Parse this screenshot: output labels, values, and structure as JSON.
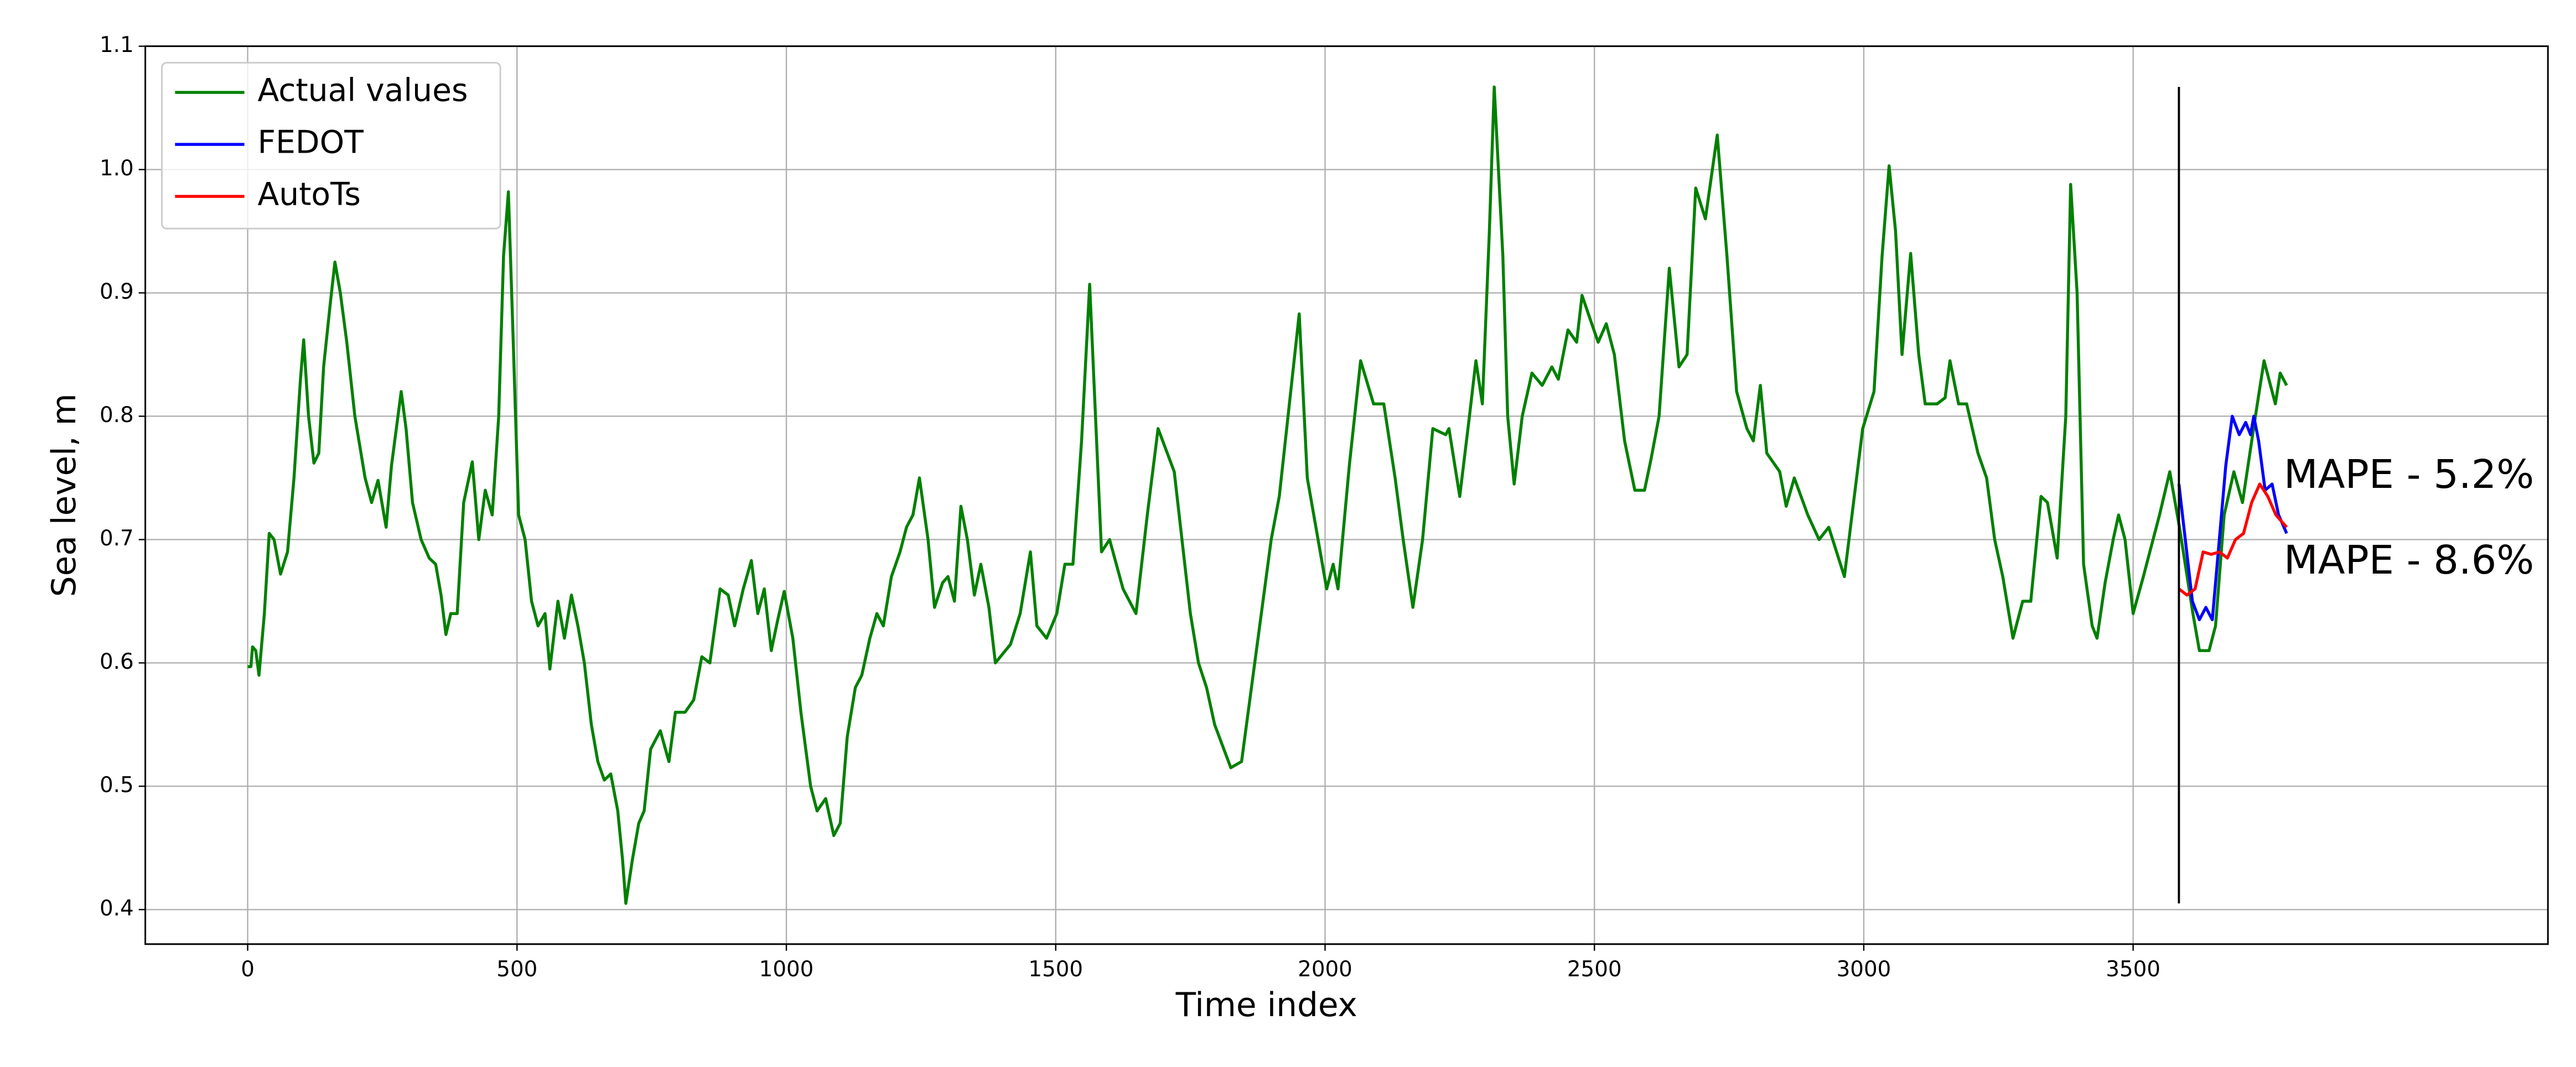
{
  "chart_data": {
    "type": "line",
    "xlabel": "Time index",
    "ylabel": "Sea level, m",
    "xlim": [
      -190,
      4270
    ],
    "ylim": [
      0.372,
      1.1
    ],
    "xticks": [
      0,
      500,
      1000,
      1500,
      2000,
      2500,
      3000,
      3500
    ],
    "yticks": [
      0.4,
      0.5,
      0.6,
      0.7,
      0.8,
      0.9,
      1.0,
      1.1
    ],
    "grid": true,
    "legend": "upper left",
    "vline": {
      "x": 3585,
      "ymin": 0.405,
      "ymax": 1.067,
      "color": "#000000"
    },
    "annotations": [
      {
        "text": "MAPE - 5.2%",
        "color": "#0000ff"
      },
      {
        "text": "MAPE - 8.6%",
        "color": "#ff0000"
      }
    ],
    "series": [
      {
        "name": "Actual values",
        "color": "#008000",
        "x": [
          0,
          6,
          9,
          15,
          21,
          31,
          40,
          49,
          61,
          74,
          86,
          98,
          104,
          113,
          123,
          132,
          141,
          153,
          162,
          172,
          184,
          199,
          218,
          230,
          242,
          257,
          267,
          279,
          285,
          294,
          306,
          322,
          337,
          349,
          359,
          368,
          377,
          389,
          401,
          417,
          429,
          441,
          454,
          466,
          475,
          484,
          493,
          503,
          515,
          527,
          539,
          552,
          561,
          576,
          588,
          601,
          613,
          625,
          638,
          650,
          662,
          674,
          687,
          696,
          702,
          714,
          726,
          736,
          748,
          766,
          782,
          794,
          812,
          828,
          843,
          858,
          877,
          892,
          904,
          920,
          935,
          947,
          959,
          972,
          984,
          996,
          1012,
          1027,
          1045,
          1057,
          1073,
          1088,
          1100,
          1113,
          1128,
          1140,
          1155,
          1168,
          1180,
          1195,
          1211,
          1223,
          1235,
          1247,
          1263,
          1275,
          1290,
          1300,
          1312,
          1324,
          1336,
          1349,
          1361,
          1376,
          1388,
          1401,
          1416,
          1434,
          1453,
          1465,
          1483,
          1502,
          1517,
          1532,
          1548,
          1563,
          1585,
          1600,
          1625,
          1649,
          1670,
          1690,
          1720,
          1750,
          1765,
          1780,
          1795,
          1825,
          1845,
          1900,
          1915,
          1952,
          1967,
          2003,
          2015,
          2024,
          2045,
          2066,
          2090,
          2109,
          2130,
          2145,
          2163,
          2181,
          2200,
          2224,
          2230,
          2250,
          2268,
          2280,
          2292,
          2305,
          2314,
          2330,
          2339,
          2351,
          2366,
          2384,
          2403,
          2421,
          2433,
          2451,
          2467,
          2477,
          2495,
          2507,
          2522,
          2537,
          2556,
          2575,
          2593,
          2605,
          2620,
          2639,
          2657,
          2672,
          2688,
          2706,
          2728,
          2746,
          2764,
          2783,
          2795,
          2808,
          2820,
          2844,
          2856,
          2871,
          2896,
          2917,
          2935,
          2964,
          2998,
          3019,
          3034,
          3047,
          3059,
          3071,
          3087,
          3102,
          3114,
          3136,
          3151,
          3160,
          3176,
          3191,
          3212,
          3228,
          3243,
          3258,
          3277,
          3295,
          3310,
          3329,
          3341,
          3359,
          3375,
          3384,
          3396,
          3408,
          3424,
          3433,
          3448,
          3463,
          3473,
          3485,
          3500,
          3519,
          3531,
          3549,
          3568,
          3586,
          3611,
          3623,
          3641,
          3653,
          3669,
          3687,
          3703,
          3727,
          3743,
          3764,
          3773,
          3785
        ],
        "values": [
          0.597,
          0.597,
          0.613,
          0.61,
          0.59,
          0.64,
          0.705,
          0.7,
          0.672,
          0.69,
          0.75,
          0.83,
          0.862,
          0.8,
          0.762,
          0.77,
          0.84,
          0.89,
          0.925,
          0.9,
          0.86,
          0.8,
          0.75,
          0.73,
          0.748,
          0.71,
          0.76,
          0.8,
          0.82,
          0.79,
          0.73,
          0.7,
          0.685,
          0.68,
          0.655,
          0.623,
          0.64,
          0.64,
          0.73,
          0.763,
          0.7,
          0.74,
          0.72,
          0.8,
          0.93,
          0.982,
          0.86,
          0.72,
          0.7,
          0.65,
          0.63,
          0.64,
          0.595,
          0.65,
          0.62,
          0.655,
          0.63,
          0.6,
          0.55,
          0.52,
          0.505,
          0.51,
          0.48,
          0.44,
          0.405,
          0.44,
          0.47,
          0.48,
          0.53,
          0.545,
          0.52,
          0.56,
          0.56,
          0.57,
          0.605,
          0.6,
          0.66,
          0.655,
          0.63,
          0.66,
          0.683,
          0.64,
          0.66,
          0.61,
          0.635,
          0.658,
          0.62,
          0.56,
          0.5,
          0.48,
          0.49,
          0.46,
          0.47,
          0.54,
          0.58,
          0.59,
          0.62,
          0.64,
          0.63,
          0.67,
          0.69,
          0.71,
          0.72,
          0.75,
          0.7,
          0.645,
          0.665,
          0.67,
          0.65,
          0.727,
          0.7,
          0.655,
          0.68,
          0.645,
          0.6,
          0.607,
          0.615,
          0.64,
          0.69,
          0.63,
          0.62,
          0.64,
          0.68,
          0.68,
          0.78,
          0.907,
          0.69,
          0.7,
          0.66,
          0.64,
          0.72,
          0.79,
          0.755,
          0.64,
          0.6,
          0.58,
          0.55,
          0.515,
          0.52,
          0.7,
          0.735,
          0.883,
          0.75,
          0.66,
          0.68,
          0.66,
          0.76,
          0.845,
          0.81,
          0.81,
          0.75,
          0.7,
          0.645,
          0.7,
          0.79,
          0.785,
          0.79,
          0.735,
          0.8,
          0.845,
          0.81,
          0.95,
          1.067,
          0.93,
          0.8,
          0.745,
          0.8,
          0.835,
          0.825,
          0.84,
          0.83,
          0.87,
          0.86,
          0.898,
          0.875,
          0.86,
          0.875,
          0.85,
          0.78,
          0.74,
          0.74,
          0.765,
          0.8,
          0.92,
          0.84,
          0.85,
          0.985,
          0.96,
          1.028,
          0.93,
          0.82,
          0.79,
          0.78,
          0.825,
          0.77,
          0.755,
          0.727,
          0.75,
          0.72,
          0.7,
          0.71,
          0.67,
          0.79,
          0.82,
          0.93,
          1.003,
          0.95,
          0.85,
          0.932,
          0.85,
          0.81,
          0.81,
          0.815,
          0.845,
          0.81,
          0.81,
          0.77,
          0.75,
          0.7,
          0.67,
          0.62,
          0.65,
          0.65,
          0.735,
          0.73,
          0.685,
          0.8,
          0.988,
          0.9,
          0.68,
          0.63,
          0.62,
          0.665,
          0.7,
          0.72,
          0.7,
          0.64,
          0.67,
          0.69,
          0.72,
          0.755,
          0.71,
          0.64,
          0.61,
          0.61,
          0.63,
          0.72,
          0.755,
          0.73,
          0.8,
          0.845,
          0.81,
          0.835,
          0.825
        ]
      },
      {
        "name": "FEDOT",
        "color": "#0000ff",
        "x": [
          3585,
          3610,
          3623,
          3635,
          3647,
          3660,
          3672,
          3684,
          3697,
          3709,
          3718,
          3724,
          3733,
          3745,
          3758,
          3770,
          3785
        ],
        "values": [
          0.745,
          0.65,
          0.635,
          0.645,
          0.635,
          0.7,
          0.76,
          0.8,
          0.785,
          0.795,
          0.785,
          0.8,
          0.78,
          0.74,
          0.745,
          0.72,
          0.705
        ]
      },
      {
        "name": "AutoTs",
        "color": "#ff0000",
        "x": [
          3585,
          3600,
          3615,
          3630,
          3645,
          3660,
          3675,
          3690,
          3705,
          3720,
          3735,
          3750,
          3765,
          3785
        ],
        "values": [
          0.66,
          0.655,
          0.66,
          0.69,
          0.688,
          0.69,
          0.685,
          0.7,
          0.705,
          0.73,
          0.745,
          0.735,
          0.72,
          0.71
        ]
      }
    ]
  }
}
